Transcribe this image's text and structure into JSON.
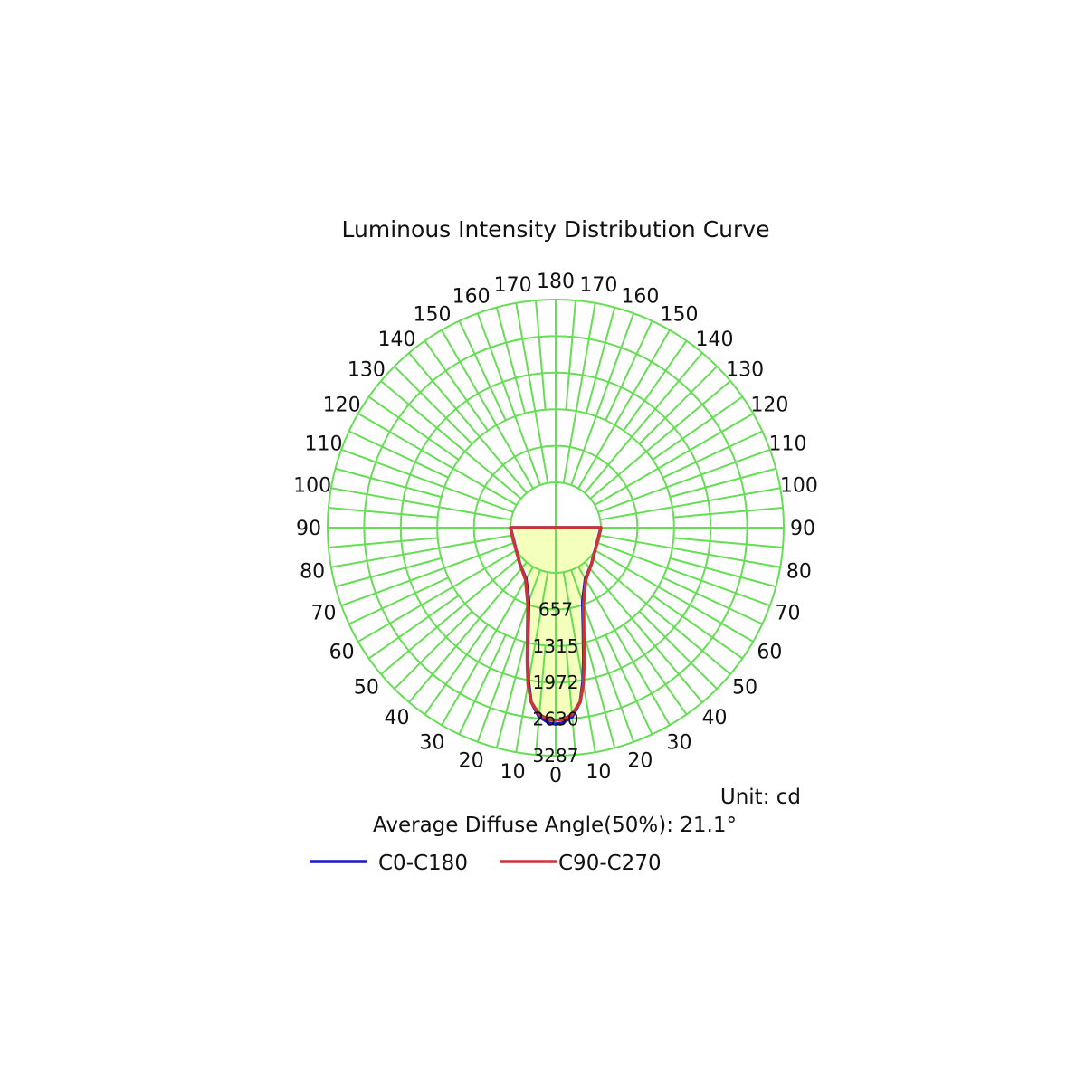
{
  "chart_data": {
    "type": "polar",
    "title": "Luminous Intensity Distribution Curve",
    "unit_label": "Unit: cd",
    "average_angle_label": "Average Diffuse Angle(50%): 21.1°",
    "radial_ticks": [
      "657",
      "1315",
      "1972",
      "2630",
      "3287"
    ],
    "radial_values": [
      657,
      1315,
      1972,
      2630,
      3287
    ],
    "rmax": 3287,
    "left_angle_labels": [
      "10",
      "20",
      "30",
      "40",
      "50",
      "60",
      "70",
      "80",
      "90",
      "100",
      "110",
      "120",
      "130",
      "140",
      "150",
      "160",
      "170"
    ],
    "right_angle_labels": [
      "10",
      "20",
      "30",
      "40",
      "50",
      "60",
      "70",
      "80",
      "90",
      "100",
      "110",
      "120",
      "130",
      "140",
      "150",
      "160",
      "170"
    ],
    "bottom_label": "0",
    "top_label": "180",
    "grid": true,
    "grid_color": "#66dd55",
    "fill_color": "#f4ffbb",
    "series": [
      {
        "name": "C0-C180",
        "color": "#1a1acc",
        "angles": [
          -90,
          -45,
          -30,
          -20,
          -15,
          -12,
          -10,
          -8,
          -5,
          -2,
          0,
          2,
          5,
          8,
          10,
          12,
          15,
          20,
          30,
          45,
          90
        ],
        "values": [
          0,
          100,
          250,
          600,
          1100,
          1600,
          2000,
          2350,
          2600,
          2700,
          2720,
          2700,
          2600,
          2350,
          2000,
          1600,
          1100,
          600,
          250,
          100,
          0
        ]
      },
      {
        "name": "C90-C270",
        "color": "#cc3333",
        "angles": [
          -90,
          -45,
          -30,
          -20,
          -15,
          -12,
          -10,
          -8,
          -5,
          -2,
          0,
          2,
          5,
          8,
          10,
          12,
          15,
          20,
          30,
          45,
          90
        ],
        "values": [
          0,
          100,
          270,
          650,
          1150,
          1650,
          2050,
          2350,
          2560,
          2640,
          2650,
          2640,
          2560,
          2350,
          2050,
          1650,
          1150,
          650,
          270,
          100,
          0
        ]
      }
    ],
    "legend_position": "bottom"
  }
}
